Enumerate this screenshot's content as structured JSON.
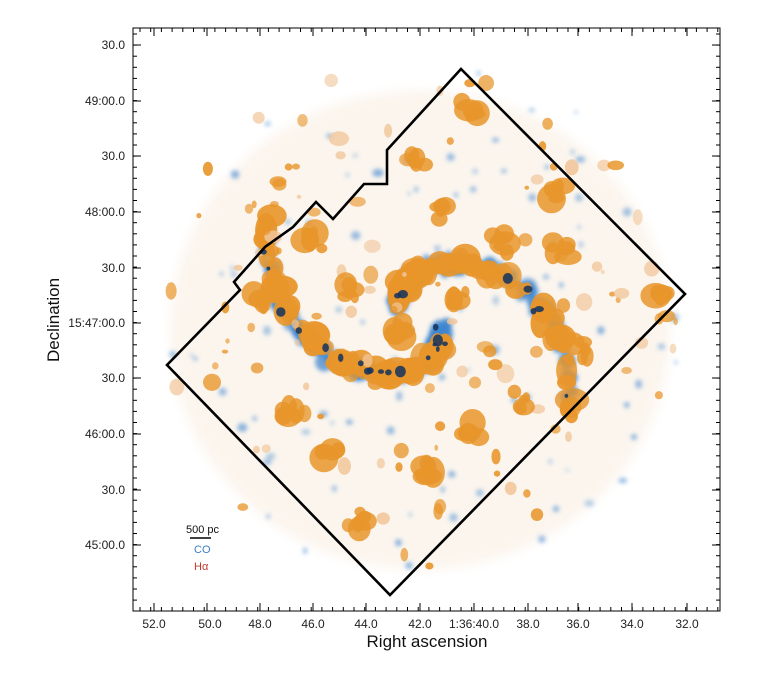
{
  "axes": {
    "xlabel": "Right ascension",
    "ylabel": "Declination",
    "x_ticks": [
      "52.0",
      "50.0",
      "48.0",
      "46.0",
      "44.0",
      "42.0",
      "1:36:40.0",
      "38.0",
      "36.0",
      "34.0",
      "32.0"
    ],
    "y_ticks": [
      "30.0",
      "49:00.0",
      "30.0",
      "48:00.0",
      "30.0",
      "15:47:00.0",
      "30.0",
      "46:00.0",
      "30.0",
      "45:00.0"
    ]
  },
  "legend": {
    "scale_label": "500 pc",
    "co_label": "CO",
    "halpha_label": "Hα",
    "co_color": "#3d7fc4",
    "halpha_color": "#c0392b"
  },
  "colors": {
    "co_emission": "#3f86cf",
    "co_dense": "#12325e",
    "halpha_emission": "#e8952a",
    "halpha_faint": "#f1c79b",
    "footprint_outline": "#000000"
  }
}
